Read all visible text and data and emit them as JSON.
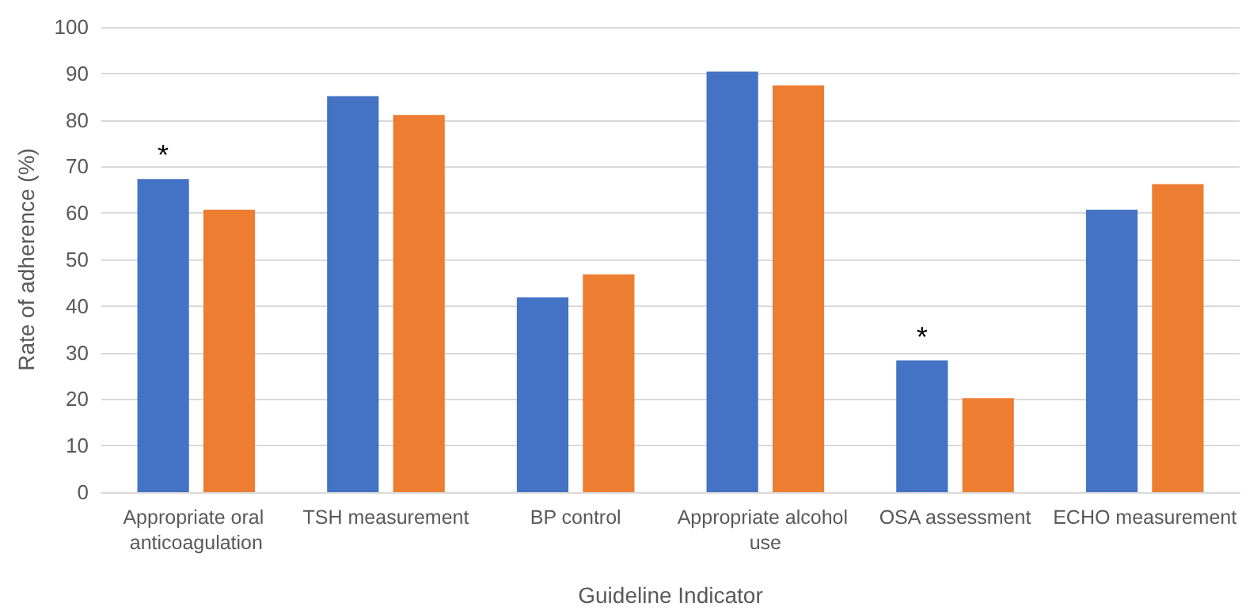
{
  "chart_data": {
    "type": "bar",
    "xlabel": "Guideline Indicator",
    "ylabel": "Rate of adherence (%)",
    "categories": [
      "Appropriate oral anticoagulation",
      "TSH measurement",
      "BP control",
      "Appropriate alcohol use",
      "OSA assessment",
      "ECHO measurement"
    ],
    "series": [
      {
        "color": "#4472c4",
        "values": [
          67.3,
          85.1,
          41.9,
          90.4,
          28.3,
          60.7
        ]
      },
      {
        "color": "#ed7d31",
        "values": [
          60.7,
          81.1,
          46.8,
          87.4,
          20.2,
          66.2
        ]
      }
    ],
    "ylim": [
      0,
      100
    ],
    "yticks": [
      0,
      10,
      20,
      30,
      40,
      50,
      60,
      70,
      80,
      90,
      100
    ],
    "grid": "y",
    "annotations": [
      {
        "text": "*",
        "x": "Appropriate oral anticoagulation",
        "y": 67.3
      },
      {
        "text": "*",
        "x": "OSA assessment",
        "y": 28.3
      }
    ]
  }
}
